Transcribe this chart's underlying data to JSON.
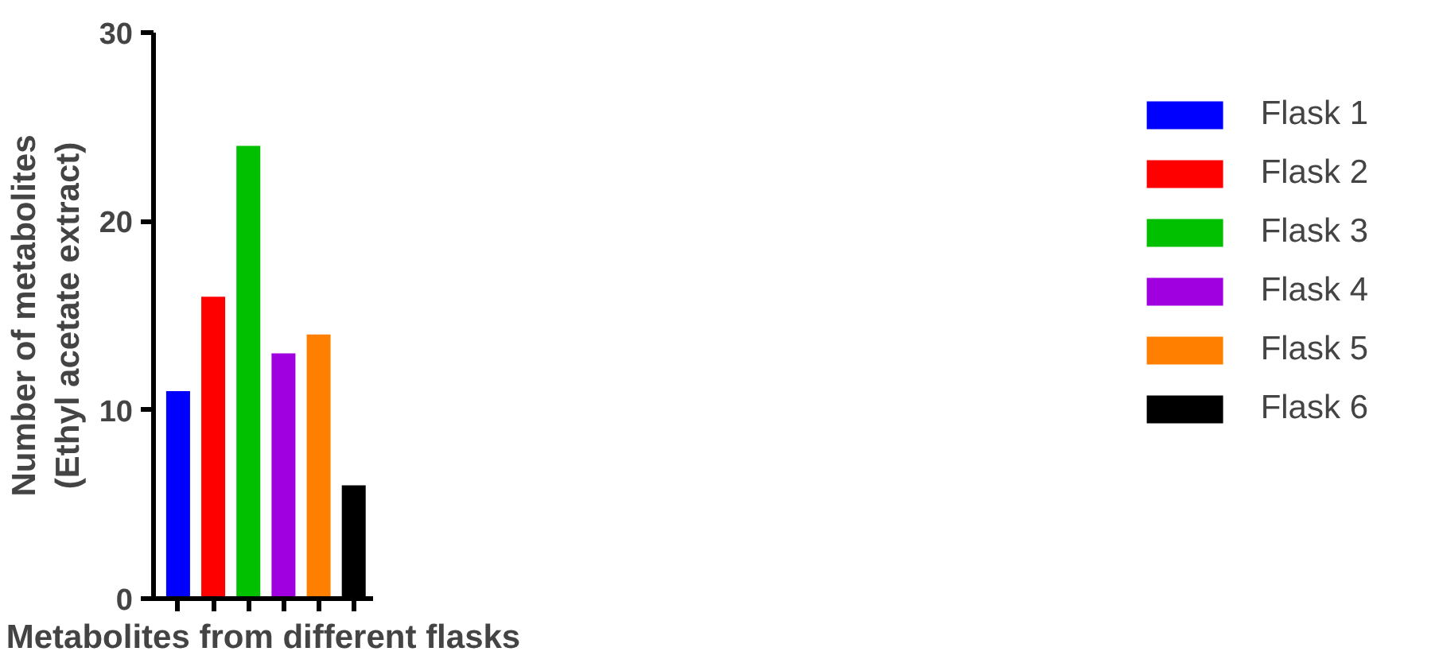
{
  "chart_data": {
    "type": "bar",
    "xlabel": "Metabolites from different flasks",
    "ylabel": "Number of metabolites\n(Ethyl acetate extract)",
    "categories": [
      null,
      null,
      null,
      null,
      null,
      null
    ],
    "series": [
      {
        "name": "Flask 1",
        "color": "#0000ff",
        "values": [
          11,
          null,
          null,
          null,
          null,
          null
        ]
      },
      {
        "name": "Flask 2",
        "color": "#ff0000",
        "values": [
          null,
          16,
          null,
          null,
          null,
          null
        ]
      },
      {
        "name": "Flask 3",
        "color": "#00c000",
        "values": [
          null,
          null,
          24,
          null,
          null,
          null
        ]
      },
      {
        "name": "Flask 4",
        "color": "#a000e0",
        "values": [
          null,
          null,
          null,
          13,
          null,
          null
        ]
      },
      {
        "name": "Flask 5",
        "color": "#ff8000",
        "values": [
          null,
          null,
          null,
          null,
          14,
          null
        ]
      },
      {
        "name": "Flask 6",
        "color": "#000000",
        "values": [
          null,
          null,
          null,
          null,
          null,
          6
        ]
      }
    ],
    "ylim": [
      0,
      30
    ],
    "yticks": [
      0,
      10,
      20,
      30
    ],
    "grid": false,
    "legend": "right",
    "tick_labels": "y"
  }
}
